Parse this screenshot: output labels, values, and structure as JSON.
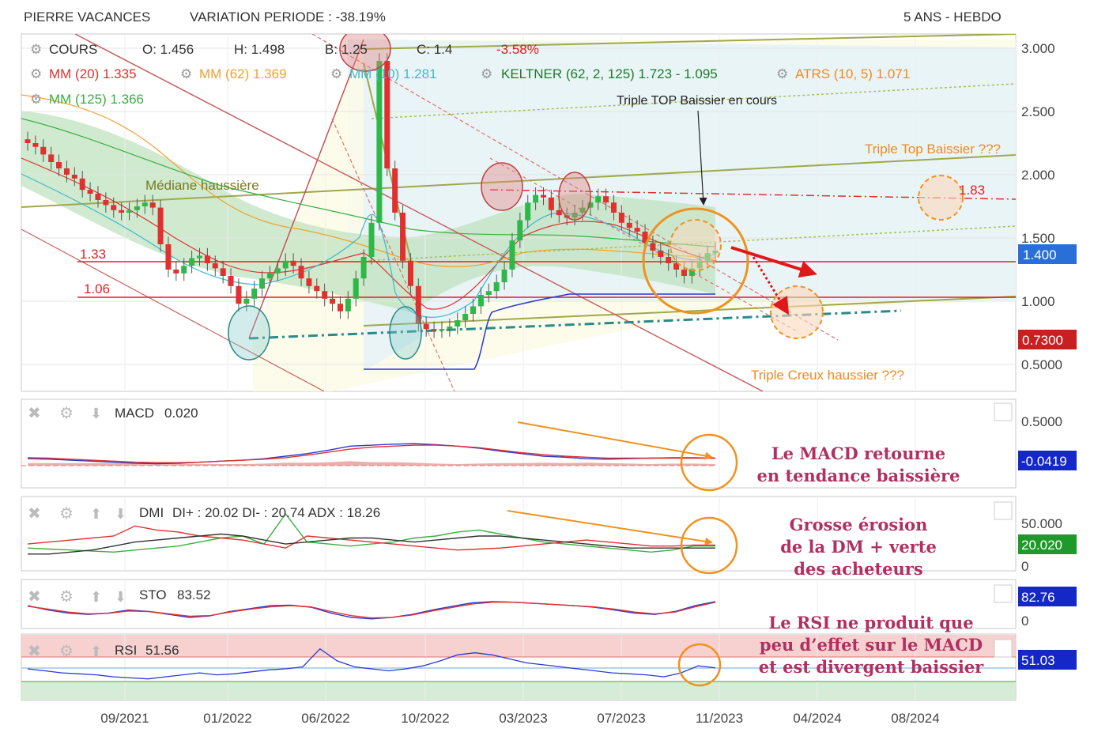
{
  "header": {
    "left": "PIERRE VACANCES",
    "variation": "VARIATION PERIODE : -38.19%",
    "right": "5 ANS - HEBDO"
  },
  "legend": {
    "cours": "COURS",
    "o": "O: 1.456",
    "h": "H: 1.498",
    "b": "B: 1.25",
    "c": "C: 1.4",
    "change": "-3.58%",
    "mm20": "MM (20)  1.335",
    "mm62": "MM (62)  1.369",
    "mm10": "MM (10)  1.281",
    "keltner": "KELTNER (62, 2, 125)  1.723 - 1.095",
    "atrs": "ATRS (10, 5)  1.071",
    "mm125": "MM (125)  1.366"
  },
  "annotations": {
    "triple_top_cours": "Triple TOP Baissier en cours",
    "triple_top_q": "Triple Top Baissier ???",
    "mediane": "Médiane haussière",
    "triple_creux": "Triple Creux haussier ???",
    "level_133": "1.33",
    "level_106": "1.06",
    "level_183": "1.83",
    "macd_note1": "Le MACD retourne",
    "macd_note2": "en tendance baissière",
    "dmi_note1": "Grosse érosion",
    "dmi_note2": "de la DM + verte",
    "dmi_note3": "des acheteurs",
    "rsi_note1": "Le RSI ne produit que",
    "rsi_note2": "peu d’effet sur le MACD",
    "rsi_note3": "et est divergent baissier"
  },
  "colors": {
    "mm20": "#e03030",
    "mm62": "#f0a030",
    "mm10": "#40b8d0",
    "keltner": "#2a9a3a",
    "atrs": "#f08a20",
    "mm125": "#3ab040",
    "note": "#b03060",
    "arrow": "#f0921e",
    "badge_blue": "#2a6fd8",
    "badge_red": "#c82020",
    "badge_green": "#1f9a2a",
    "badge_navy": "#1428c8"
  },
  "chart_data": [
    {
      "type": "candlestick",
      "name": "price",
      "x_ticks": [
        "09/2021",
        "01/2022",
        "06/2022",
        "10/2022",
        "03/2023",
        "07/2023",
        "11/2023",
        "04/2024",
        "08/2024"
      ],
      "y_ticks": [
        "3.000",
        "2.500",
        "2.000",
        "1.500",
        "1.000",
        "0.5000"
      ],
      "ylim": [
        0.3,
        3.1
      ],
      "close": [
        2.25,
        2.22,
        2.16,
        2.1,
        2.05,
        2.0,
        1.97,
        1.88,
        1.85,
        1.8,
        1.76,
        1.72,
        1.7,
        1.72,
        1.75,
        1.78,
        1.74,
        1.45,
        1.25,
        1.22,
        1.28,
        1.34,
        1.36,
        1.3,
        1.26,
        1.2,
        1.12,
        0.98,
        1.02,
        1.1,
        1.18,
        1.22,
        1.26,
        1.32,
        1.28,
        1.18,
        1.12,
        1.08,
        1.02,
        0.98,
        0.92,
        1.02,
        1.18,
        1.35,
        1.62,
        2.9,
        2.05,
        1.7,
        1.32,
        1.12,
        0.82,
        0.78,
        0.77,
        0.78,
        0.8,
        0.85,
        0.9,
        0.96,
        1.05,
        1.08,
        1.15,
        1.25,
        1.48,
        1.64,
        1.78,
        1.84,
        1.82,
        1.72,
        1.68,
        1.66,
        1.7,
        1.74,
        1.78,
        1.83,
        1.78,
        1.7,
        1.62,
        1.58,
        1.55,
        1.46,
        1.4,
        1.35,
        1.3,
        1.25,
        1.2,
        1.26,
        1.32,
        1.38,
        1.4
      ],
      "levels": {
        "resistance_183": 1.83,
        "line_133": 1.33,
        "line_106": 1.06
      },
      "last_badges": [
        "1.400",
        "0.7300"
      ]
    },
    {
      "type": "line",
      "name": "macd",
      "label": "MACD",
      "value": "0.020",
      "y_ticks": [
        "0.5000"
      ],
      "badge": "-0.0419",
      "ylim": [
        -0.6,
        0.9
      ],
      "series": [
        {
          "name": "macd",
          "values": [
            -0.05,
            -0.06,
            -0.08,
            -0.1,
            -0.12,
            -0.14,
            -0.15,
            -0.14,
            -0.12,
            -0.1,
            -0.08,
            -0.05,
            0.0,
            0.05,
            0.12,
            0.2,
            0.22,
            0.24,
            0.25,
            0.23,
            0.2,
            0.16,
            0.1,
            0.05,
            0.0,
            -0.02,
            -0.05,
            -0.06,
            -0.05,
            -0.04,
            -0.03,
            -0.03,
            -0.04
          ]
        },
        {
          "name": "signal",
          "values": [
            -0.03,
            -0.04,
            -0.06,
            -0.08,
            -0.1,
            -0.12,
            -0.13,
            -0.13,
            -0.12,
            -0.1,
            -0.08,
            -0.06,
            -0.03,
            0.02,
            0.08,
            0.14,
            0.18,
            0.2,
            0.22,
            0.22,
            0.2,
            0.17,
            0.12,
            0.07,
            0.03,
            0.0,
            -0.02,
            -0.04,
            -0.04,
            -0.04,
            -0.04,
            -0.04,
            -0.04
          ]
        }
      ]
    },
    {
      "type": "line",
      "name": "dmi",
      "label": "DMI",
      "value": "DI+ : 20.02 DI- : 20.74 ADX : 18.26",
      "y_ticks": [
        "50.000",
        "0"
      ],
      "badge": "20.020",
      "ylim": [
        0,
        60
      ],
      "series": [
        {
          "name": "DI+",
          "values": [
            18,
            17,
            16,
            15,
            14,
            16,
            18,
            20,
            24,
            28,
            30,
            22,
            52,
            24,
            22,
            20,
            22,
            24,
            28,
            30,
            34,
            36,
            32,
            28,
            24,
            22,
            20,
            18,
            16,
            14,
            16,
            20,
            20
          ]
        },
        {
          "name": "DI-",
          "values": [
            22,
            24,
            26,
            28,
            30,
            40,
            36,
            34,
            30,
            28,
            26,
            22,
            18,
            30,
            28,
            26,
            24,
            22,
            20,
            18,
            16,
            17,
            18,
            20,
            22,
            24,
            26,
            24,
            22,
            20,
            20,
            21,
            21
          ]
        },
        {
          "name": "ADX",
          "values": [
            12,
            12,
            14,
            16,
            20,
            24,
            26,
            28,
            30,
            32,
            30,
            26,
            22,
            24,
            26,
            28,
            28,
            26,
            24,
            26,
            28,
            30,
            30,
            28,
            26,
            24,
            22,
            20,
            18,
            18,
            18,
            18,
            18
          ]
        }
      ]
    },
    {
      "type": "line",
      "name": "sto",
      "label": "STO",
      "value": "83.52",
      "y_ticks": [
        "0"
      ],
      "badge": "82.76",
      "ylim": [
        0,
        100
      ],
      "series": [
        {
          "name": "%K",
          "values": [
            70,
            55,
            45,
            40,
            45,
            55,
            50,
            40,
            30,
            35,
            50,
            60,
            70,
            72,
            65,
            45,
            30,
            25,
            30,
            40,
            55,
            68,
            80,
            84,
            82,
            78,
            74,
            70,
            65,
            55,
            45,
            40,
            50,
            70,
            84
          ]
        },
        {
          "name": "%D",
          "values": [
            68,
            58,
            48,
            42,
            44,
            52,
            50,
            42,
            34,
            36,
            48,
            58,
            66,
            70,
            66,
            50,
            36,
            28,
            30,
            38,
            52,
            64,
            76,
            82,
            82,
            78,
            74,
            70,
            66,
            58,
            48,
            42,
            48,
            66,
            82
          ]
        }
      ]
    },
    {
      "type": "line",
      "name": "rsi",
      "label": "RSI",
      "value": "51.56",
      "badge": "51.03",
      "ylim": [
        20,
        80
      ],
      "series": [
        {
          "name": "rsi",
          "values": [
            50,
            48,
            46,
            45,
            44,
            42,
            41,
            40,
            42,
            44,
            46,
            44,
            45,
            47,
            49,
            50,
            52,
            70,
            58,
            52,
            50,
            48,
            50,
            53,
            58,
            64,
            66,
            64,
            60,
            56,
            54,
            52,
            50,
            48,
            46,
            45,
            44,
            42,
            46,
            53,
            51
          ]
        }
      ]
    }
  ]
}
